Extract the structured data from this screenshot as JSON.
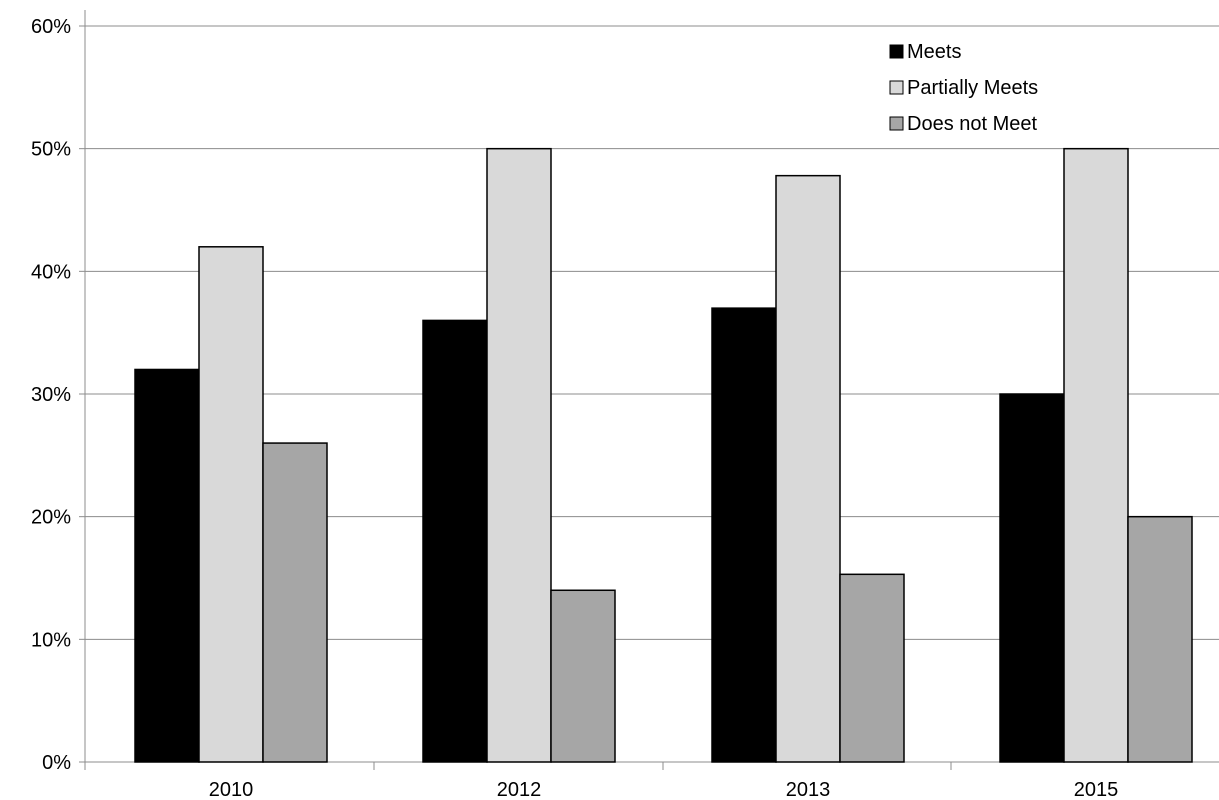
{
  "chart_data": {
    "type": "bar",
    "categories": [
      "2010",
      "2012",
      "2013",
      "2015"
    ],
    "series": [
      {
        "name": "Meets",
        "values": [
          32,
          36,
          37,
          30
        ],
        "color": "#000000"
      },
      {
        "name": "Partially Meets",
        "values": [
          42,
          50,
          47.8,
          50
        ],
        "color": "#d9d9d9"
      },
      {
        "name": "Does not Meet",
        "values": [
          26,
          14,
          15.3,
          20
        ],
        "color": "#a6a6a6"
      }
    ],
    "y_ticks": [
      "0%",
      "10%",
      "20%",
      "30%",
      "40%",
      "50%",
      "60%"
    ],
    "ylim": [
      0,
      60
    ],
    "grid": true,
    "legend_position": "top-right",
    "title": "",
    "xlabel": "",
    "ylabel": ""
  }
}
